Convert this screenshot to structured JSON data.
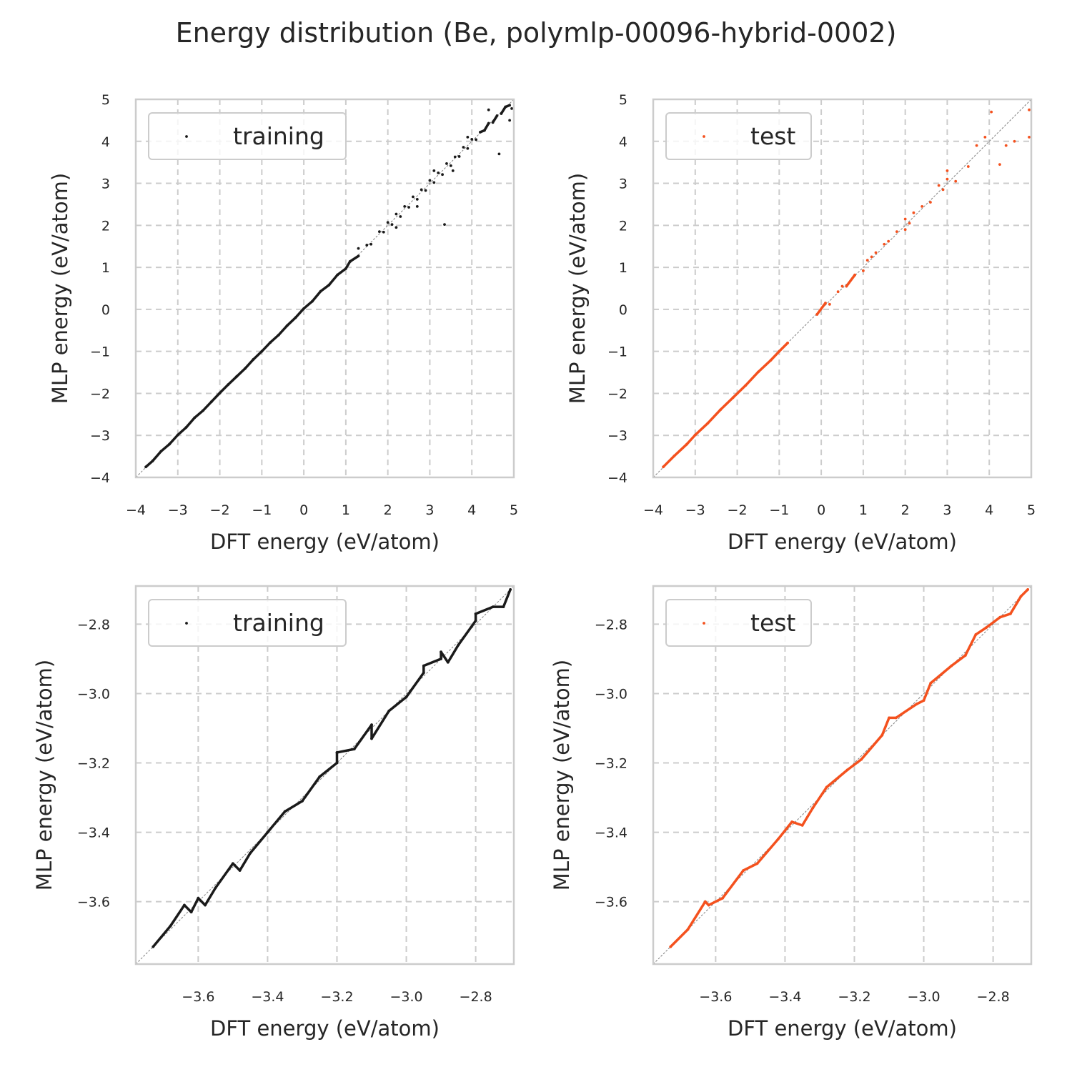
{
  "figure": {
    "title": "Energy distribution (Be, polymlp-00096-hybrid-0002)"
  },
  "colors": {
    "training": "#1a1a1a",
    "test": "#f4511e",
    "grid": "#cccccc",
    "frame": "#cccccc",
    "diagonal": "#808080",
    "text": "#262626"
  },
  "chart_data": [
    {
      "type": "scatter",
      "panel": "top-left",
      "series": [
        {
          "name": "training",
          "color": "#1a1a1a"
        }
      ],
      "xlabel": "DFT energy (eV/atom)",
      "ylabel": "MLP energy (eV/atom)",
      "xlim": [
        -4,
        5
      ],
      "ylim": [
        -4,
        5
      ],
      "xticks": [
        -4,
        -3,
        -2,
        -1,
        0,
        1,
        2,
        3,
        4,
        5
      ],
      "yticks": [
        -4,
        -3,
        -2,
        -1,
        0,
        1,
        2,
        3,
        4,
        5
      ],
      "xtick_labels": [
        "−4",
        "−3",
        "−2",
        "−1",
        "0",
        "1",
        "2",
        "3",
        "4",
        "5"
      ],
      "ytick_labels": [
        "−4",
        "−3",
        "−2",
        "−1",
        "0",
        "1",
        "2",
        "3",
        "4",
        "5"
      ],
      "grid": true,
      "legend": "top-left",
      "diagonal": true,
      "points": [
        [
          -3.76,
          -3.75
        ],
        [
          -3.6,
          -3.61
        ],
        [
          -3.4,
          -3.38
        ],
        [
          -3.2,
          -3.21
        ],
        [
          -3.0,
          -2.99
        ],
        [
          -2.8,
          -2.81
        ],
        [
          -2.6,
          -2.58
        ],
        [
          -2.4,
          -2.41
        ],
        [
          -2.2,
          -2.2
        ],
        [
          -2.0,
          -1.99
        ],
        [
          -1.8,
          -1.79
        ],
        [
          -1.6,
          -1.6
        ],
        [
          -1.4,
          -1.41
        ],
        [
          -1.2,
          -1.19
        ],
        [
          -1.0,
          -1.0
        ],
        [
          -0.8,
          -0.79
        ],
        [
          -0.6,
          -0.61
        ],
        [
          -0.4,
          -0.39
        ],
        [
          -0.2,
          -0.2
        ],
        [
          0.0,
          0.02
        ],
        [
          0.2,
          0.19
        ],
        [
          0.4,
          0.43
        ],
        [
          0.6,
          0.58
        ],
        [
          0.8,
          0.82
        ],
        [
          1.0,
          0.97
        ],
        [
          1.1,
          1.14
        ],
        [
          1.3,
          1.27
        ],
        [
          1.5,
          1.53
        ],
        [
          1.6,
          1.55
        ],
        [
          1.8,
          1.85
        ],
        [
          1.9,
          1.84
        ],
        [
          2.0,
          2.07
        ],
        [
          2.1,
          2.02
        ],
        [
          2.2,
          2.27
        ],
        [
          2.3,
          2.21
        ],
        [
          2.4,
          2.45
        ],
        [
          2.5,
          2.43
        ],
        [
          2.6,
          2.68
        ],
        [
          2.7,
          2.62
        ],
        [
          2.8,
          2.85
        ],
        [
          2.9,
          2.83
        ],
        [
          3.0,
          3.07
        ],
        [
          3.1,
          3.02
        ],
        [
          3.2,
          3.25
        ],
        [
          3.3,
          3.21
        ],
        [
          3.4,
          3.47
        ],
        [
          3.5,
          3.42
        ],
        [
          3.6,
          3.63
        ],
        [
          3.7,
          3.64
        ],
        [
          3.8,
          3.86
        ],
        [
          3.9,
          3.83
        ],
        [
          4.0,
          4.05
        ],
        [
          4.1,
          4.04
        ],
        [
          4.2,
          4.22
        ],
        [
          4.3,
          4.26
        ],
        [
          4.4,
          4.43
        ],
        [
          4.5,
          4.45
        ],
        [
          4.6,
          4.61
        ],
        [
          4.7,
          4.66
        ],
        [
          4.8,
          4.82
        ],
        [
          4.9,
          4.86
        ],
        [
          4.95,
          4.78
        ],
        [
          2.7,
          2.45
        ],
        [
          3.35,
          2.02
        ],
        [
          4.65,
          3.7
        ],
        [
          4.9,
          4.5
        ],
        [
          3.55,
          3.3
        ],
        [
          2.2,
          1.95
        ],
        [
          1.3,
          1.45
        ],
        [
          3.9,
          4.1
        ],
        [
          4.4,
          4.75
        ],
        [
          3.1,
          3.3
        ]
      ]
    },
    {
      "type": "scatter",
      "panel": "top-right",
      "series": [
        {
          "name": "test",
          "color": "#f4511e"
        }
      ],
      "xlabel": "DFT energy (eV/atom)",
      "ylabel": "MLP energy (eV/atom)",
      "xlim": [
        -4,
        5
      ],
      "ylim": [
        -4,
        5
      ],
      "xticks": [
        -4,
        -3,
        -2,
        -1,
        0,
        1,
        2,
        3,
        4,
        5
      ],
      "yticks": [
        -4,
        -3,
        -2,
        -1,
        0,
        1,
        2,
        3,
        4,
        5
      ],
      "xtick_labels": [
        "−4",
        "−3",
        "−2",
        "−1",
        "0",
        "1",
        "2",
        "3",
        "4",
        "5"
      ],
      "ytick_labels": [
        "−4",
        "−3",
        "−2",
        "−1",
        "0",
        "1",
        "2",
        "3",
        "4",
        "5"
      ],
      "grid": true,
      "legend": "top-left",
      "diagonal": true,
      "points": [
        [
          -3.76,
          -3.75
        ],
        [
          -3.5,
          -3.49
        ],
        [
          -3.2,
          -3.21
        ],
        [
          -3.0,
          -2.99
        ],
        [
          -2.7,
          -2.71
        ],
        [
          -2.4,
          -2.39
        ],
        [
          -2.1,
          -2.1
        ],
        [
          -1.8,
          -1.81
        ],
        [
          -1.5,
          -1.49
        ],
        [
          -1.2,
          -1.21
        ],
        [
          -1.0,
          -1.0
        ],
        [
          -0.8,
          -0.8
        ],
        [
          -0.1,
          -0.12
        ],
        [
          0.1,
          0.15
        ],
        [
          0.2,
          0.12
        ],
        [
          0.4,
          0.42
        ],
        [
          0.6,
          0.55
        ],
        [
          0.8,
          0.82
        ],
        [
          1.0,
          0.92
        ],
        [
          1.1,
          1.17
        ],
        [
          1.3,
          1.35
        ],
        [
          1.5,
          1.55
        ],
        [
          1.6,
          1.62
        ],
        [
          1.8,
          1.85
        ],
        [
          2.0,
          2.15
        ],
        [
          2.0,
          1.9
        ],
        [
          2.1,
          2.05
        ],
        [
          2.4,
          2.45
        ],
        [
          2.6,
          2.55
        ],
        [
          2.8,
          2.95
        ],
        [
          2.9,
          2.85
        ],
        [
          3.0,
          3.1
        ],
        [
          3.0,
          3.3
        ],
        [
          3.2,
          3.05
        ],
        [
          3.5,
          3.4
        ],
        [
          3.7,
          3.9
        ],
        [
          3.9,
          4.1
        ],
        [
          4.05,
          4.7
        ],
        [
          4.25,
          3.45
        ],
        [
          4.4,
          3.9
        ],
        [
          4.6,
          4.0
        ],
        [
          4.95,
          4.75
        ],
        [
          4.95,
          4.1
        ],
        [
          2.2,
          2.3
        ],
        [
          1.2,
          1.25
        ],
        [
          0.5,
          0.55
        ]
      ]
    },
    {
      "type": "scatter",
      "panel": "bottom-left",
      "series": [
        {
          "name": "training",
          "color": "#1a1a1a"
        }
      ],
      "xlabel": "DFT energy (eV/atom)",
      "ylabel": "MLP energy (eV/atom)",
      "xlim": [
        -3.78,
        -2.69
      ],
      "ylim": [
        -3.78,
        -2.69
      ],
      "xticks": [
        -3.6,
        -3.4,
        -3.2,
        -3.0,
        -2.8
      ],
      "yticks": [
        -3.6,
        -3.4,
        -3.2,
        -3.0,
        -2.8
      ],
      "xtick_labels": [
        "−3.6",
        "−3.4",
        "−3.2",
        "−3.0",
        "−2.8"
      ],
      "ytick_labels": [
        "−3.6",
        "−3.4",
        "−3.2",
        "−3.0",
        "−2.8"
      ],
      "grid": true,
      "legend": "top-left",
      "diagonal": true,
      "points": [
        [
          -3.73,
          -3.73
        ],
        [
          -3.68,
          -3.67
        ],
        [
          -3.62,
          -3.63
        ],
        [
          -3.6,
          -3.59
        ],
        [
          -3.55,
          -3.56
        ],
        [
          -3.5,
          -3.49
        ],
        [
          -3.45,
          -3.46
        ],
        [
          -3.4,
          -3.4
        ],
        [
          -3.35,
          -3.34
        ],
        [
          -3.3,
          -3.31
        ],
        [
          -3.25,
          -3.24
        ],
        [
          -3.2,
          -3.2
        ],
        [
          -3.15,
          -3.16
        ],
        [
          -3.1,
          -3.09
        ],
        [
          -3.05,
          -3.05
        ],
        [
          -3.0,
          -3.01
        ],
        [
          -2.95,
          -2.94
        ],
        [
          -2.9,
          -2.9
        ],
        [
          -2.85,
          -2.86
        ],
        [
          -2.8,
          -2.79
        ],
        [
          -2.75,
          -2.75
        ],
        [
          -2.7,
          -2.7
        ],
        [
          -3.64,
          -3.61
        ],
        [
          -3.58,
          -3.61
        ],
        [
          -3.48,
          -3.51
        ],
        [
          -3.2,
          -3.17
        ],
        [
          -3.1,
          -3.13
        ],
        [
          -2.95,
          -2.92
        ],
        [
          -2.88,
          -2.91
        ],
        [
          -2.8,
          -2.77
        ],
        [
          -2.72,
          -2.75
        ],
        [
          -2.9,
          -2.88
        ]
      ]
    },
    {
      "type": "scatter",
      "panel": "bottom-right",
      "series": [
        {
          "name": "test",
          "color": "#f4511e"
        }
      ],
      "xlabel": "DFT energy (eV/atom)",
      "ylabel": "MLP energy (eV/atom)",
      "xlim": [
        -3.78,
        -2.69
      ],
      "ylim": [
        -3.78,
        -2.69
      ],
      "xticks": [
        -3.6,
        -3.4,
        -3.2,
        -3.0,
        -2.8
      ],
      "yticks": [
        -3.6,
        -3.4,
        -3.2,
        -3.0,
        -2.8
      ],
      "xtick_labels": [
        "−3.6",
        "−3.4",
        "−3.2",
        "−3.0",
        "−2.8"
      ],
      "ytick_labels": [
        "−3.6",
        "−3.4",
        "−3.2",
        "−3.0",
        "−2.8"
      ],
      "grid": true,
      "legend": "top-left",
      "diagonal": true,
      "points": [
        [
          -3.73,
          -3.73
        ],
        [
          -3.68,
          -3.68
        ],
        [
          -3.62,
          -3.61
        ],
        [
          -3.58,
          -3.59
        ],
        [
          -3.52,
          -3.51
        ],
        [
          -3.48,
          -3.49
        ],
        [
          -3.42,
          -3.42
        ],
        [
          -3.38,
          -3.37
        ],
        [
          -3.32,
          -3.33
        ],
        [
          -3.28,
          -3.27
        ],
        [
          -3.22,
          -3.22
        ],
        [
          -3.18,
          -3.19
        ],
        [
          -3.12,
          -3.12
        ],
        [
          -3.08,
          -3.07
        ],
        [
          -3.02,
          -3.03
        ],
        [
          -2.98,
          -2.97
        ],
        [
          -2.92,
          -2.92
        ],
        [
          -2.88,
          -2.89
        ],
        [
          -2.82,
          -2.81
        ],
        [
          -2.78,
          -2.78
        ],
        [
          -2.72,
          -2.72
        ],
        [
          -2.7,
          -2.7
        ],
        [
          -3.63,
          -3.6
        ],
        [
          -3.35,
          -3.38
        ],
        [
          -3.1,
          -3.07
        ],
        [
          -3.0,
          -3.02
        ],
        [
          -2.85,
          -2.83
        ],
        [
          -2.75,
          -2.77
        ]
      ]
    }
  ]
}
